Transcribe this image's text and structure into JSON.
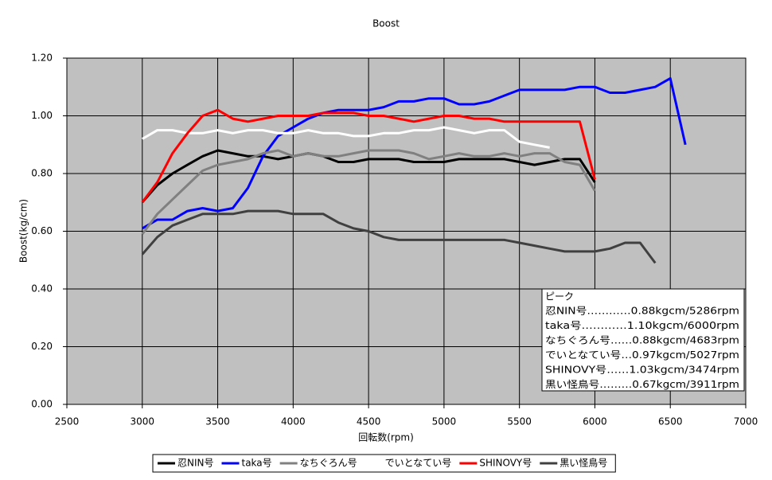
{
  "chart_data": {
    "type": "line",
    "title": "Boost",
    "x_label": "回転数(rpm)",
    "y_label": "Boost(kg/cm)",
    "x": [
      3000,
      3100,
      3200,
      3300,
      3400,
      3500,
      3600,
      3700,
      3800,
      3900,
      4000,
      4100,
      4200,
      4300,
      4400,
      4500,
      4600,
      4700,
      4800,
      4900,
      5000,
      5100,
      5200,
      5300,
      5400,
      5500,
      5600,
      5700,
      5800,
      5900,
      6000,
      6100,
      6200,
      6300,
      6400,
      6500,
      6600
    ],
    "xlim": [
      2500,
      7000
    ],
    "xticks": [
      2500,
      3000,
      3500,
      4000,
      4500,
      5000,
      5500,
      6000,
      6500,
      7000
    ],
    "ylim": [
      0,
      1.2
    ],
    "yticks": [
      {
        "value": 0,
        "label": "0.00"
      },
      {
        "value": 0.2,
        "label": "0.20"
      },
      {
        "value": 0.4,
        "label": "0.40"
      },
      {
        "value": 0.6,
        "label": "0.60"
      },
      {
        "value": 0.8,
        "label": "0.80"
      },
      {
        "value": 1,
        "label": "1.00"
      },
      {
        "value": 1.2,
        "label": "1.20"
      }
    ],
    "grid": true,
    "plot_background": "#c0c0c0",
    "legend": "bottom",
    "series": [
      {
        "name": "忍NIN号",
        "color": "#000000",
        "values": [
          0.7,
          0.76,
          0.8,
          0.83,
          0.86,
          0.88,
          0.87,
          0.86,
          0.86,
          0.85,
          0.86,
          0.87,
          0.86,
          0.84,
          0.84,
          0.85,
          0.85,
          0.85,
          0.84,
          0.84,
          0.84,
          0.85,
          0.85,
          0.85,
          0.85,
          0.84,
          0.83,
          0.84,
          0.85,
          0.85,
          0.77,
          null,
          null,
          null,
          null,
          null,
          null
        ]
      },
      {
        "name": "taka号",
        "color": "#0000ff",
        "values": [
          0.61,
          0.64,
          0.64,
          0.67,
          0.68,
          0.67,
          0.68,
          0.75,
          0.86,
          0.93,
          0.96,
          0.99,
          1.01,
          1.02,
          1.02,
          1.02,
          1.03,
          1.05,
          1.05,
          1.06,
          1.06,
          1.04,
          1.04,
          1.05,
          1.07,
          1.09,
          1.09,
          1.09,
          1.09,
          1.1,
          1.1,
          1.08,
          1.08,
          1.09,
          1.1,
          1.13,
          0.9
        ]
      },
      {
        "name": "なちぐろん号",
        "color": "#808080",
        "values": [
          0.59,
          0.66,
          0.71,
          0.76,
          0.81,
          0.83,
          0.84,
          0.85,
          0.87,
          0.88,
          0.86,
          0.87,
          0.86,
          0.86,
          0.87,
          0.88,
          0.88,
          0.88,
          0.87,
          0.85,
          0.86,
          0.87,
          0.86,
          0.86,
          0.87,
          0.86,
          0.87,
          0.87,
          0.84,
          0.83,
          0.74,
          null,
          null,
          null,
          null,
          null,
          null
        ]
      },
      {
        "name": "でいとなてい号",
        "color": "#ffffff",
        "values": [
          0.92,
          0.95,
          0.95,
          0.94,
          0.94,
          0.95,
          0.94,
          0.95,
          0.95,
          0.94,
          0.94,
          0.95,
          0.94,
          0.94,
          0.93,
          0.93,
          0.94,
          0.94,
          0.95,
          0.95,
          0.96,
          0.95,
          0.94,
          0.95,
          0.95,
          0.91,
          0.9,
          0.89,
          null,
          null,
          null,
          null,
          null,
          null,
          null,
          null,
          null
        ]
      },
      {
        "name": "SHINOVY号",
        "color": "#ff0000",
        "values": [
          0.7,
          0.77,
          0.87,
          0.94,
          1.0,
          1.02,
          0.99,
          0.98,
          0.99,
          1.0,
          1.0,
          1.0,
          1.01,
          1.01,
          1.01,
          1.0,
          1.0,
          0.99,
          0.98,
          0.99,
          1.0,
          1.0,
          0.99,
          0.99,
          0.98,
          0.98,
          0.98,
          0.98,
          0.98,
          0.98,
          0.78,
          null,
          null,
          null,
          null,
          null,
          null
        ]
      },
      {
        "name": "黒い怪鳥号",
        "color": "#404040",
        "values": [
          0.52,
          0.58,
          0.62,
          0.64,
          0.66,
          0.66,
          0.66,
          0.67,
          0.67,
          0.67,
          0.66,
          0.66,
          0.66,
          0.63,
          0.61,
          0.6,
          0.58,
          0.57,
          0.57,
          0.57,
          0.57,
          0.57,
          0.57,
          0.57,
          0.57,
          0.56,
          0.55,
          0.54,
          0.53,
          0.53,
          0.53,
          0.54,
          0.56,
          0.56,
          0.49,
          null,
          null
        ]
      }
    ],
    "annotation": {
      "title": "ピーク",
      "lines": [
        "忍NIN号…………0.88kgcm/5286rpm",
        "taka号…………1.10kgcm/6000rpm",
        "なちぐろん号……0.88kgcm/4683rpm",
        "でいとなてい号…0.97kgcm/5027rpm",
        "SHINOVY号……1.03kgcm/3474rpm",
        "黒い怪鳥号………0.67kgcm/3911rpm"
      ]
    }
  }
}
